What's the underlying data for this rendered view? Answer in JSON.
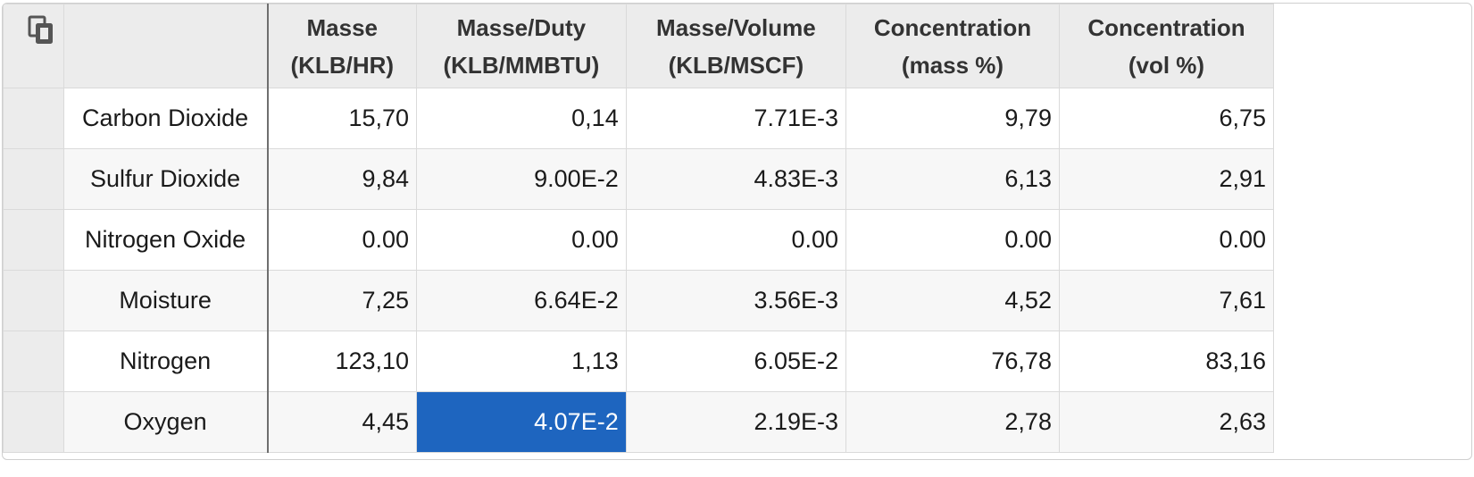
{
  "icons": {
    "copy": "copy-icon"
  },
  "table": {
    "columns": [
      {
        "line1": "Masse",
        "line2": "(KLB/HR)"
      },
      {
        "line1": "Masse/Duty",
        "line2": "(KLB/MMBTU)"
      },
      {
        "line1": "Masse/Volume",
        "line2": "(KLB/MSCF)"
      },
      {
        "line1": "Concentration",
        "line2": "(mass %)"
      },
      {
        "line1": "Concentration",
        "line2": "(vol %)"
      }
    ],
    "rows": [
      {
        "name": "Carbon Dioxide",
        "values": [
          "15,70",
          "0,14",
          "7.71E-3",
          "9,79",
          "6,75"
        ]
      },
      {
        "name": "Sulfur Dioxide",
        "values": [
          "9,84",
          "9.00E-2",
          "4.83E-3",
          "6,13",
          "2,91"
        ]
      },
      {
        "name": "Nitrogen Oxide",
        "values": [
          "0.00",
          "0.00",
          "0.00",
          "0.00",
          "0.00"
        ]
      },
      {
        "name": "Moisture",
        "values": [
          "7,25",
          "6.64E-2",
          "3.56E-3",
          "4,52",
          "7,61"
        ]
      },
      {
        "name": "Nitrogen",
        "values": [
          "123,10",
          "1,13",
          "6.05E-2",
          "76,78",
          "83,16"
        ]
      },
      {
        "name": "Oxygen",
        "values": [
          "4,45",
          "4.07E-2",
          "2.19E-3",
          "2,78",
          "2,63"
        ]
      }
    ],
    "selected_cell": {
      "row": 5,
      "col": 1
    },
    "colors": {
      "header_bg": "#ececec",
      "selected_bg": "#1e65bf",
      "selected_fg": "#ffffff",
      "grid_line": "#dadada",
      "row_header_divider": "#6f6f6f"
    }
  }
}
